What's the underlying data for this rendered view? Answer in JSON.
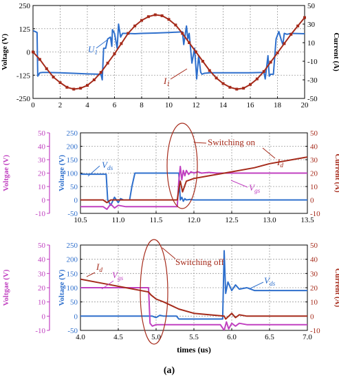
{
  "figure_label": "(a)",
  "colors": {
    "blue": "#2e6fcc",
    "red": "#a52a1a",
    "magenta": "#c040c0",
    "grid": "#9a9a9a"
  },
  "chart_data": [
    {
      "id": "top",
      "type": "line",
      "xlim": [
        0,
        20
      ],
      "x_ticks": [
        0,
        2,
        4,
        6,
        8,
        10,
        12,
        14,
        16,
        18,
        20
      ],
      "left_axis": {
        "label": "Voltage (V)",
        "lim": [
          -250,
          250
        ],
        "ticks": [
          -250,
          -125,
          0,
          125,
          250
        ]
      },
      "right_axis": {
        "label": "Current (A)",
        "lim": [
          -50,
          50
        ],
        "ticks": [
          -50,
          -30,
          -10,
          10,
          30,
          50
        ]
      },
      "series": [
        {
          "name": "U1",
          "label_main": "U",
          "label_sub": "1",
          "axis": "left",
          "color_key": "blue",
          "x": [
            0,
            0.15,
            0.3,
            0.35,
            0.5,
            0.7,
            1,
            2,
            3,
            4,
            5,
            5.1,
            5.2,
            5.35,
            5.5,
            5.7,
            5.8,
            5.85,
            6,
            6.2,
            6.3,
            6.45,
            6.6,
            6.9,
            7.5,
            8,
            9,
            10,
            11,
            11.1,
            11.3,
            11.4,
            11.5,
            11.7,
            11.9,
            12.05,
            12.2,
            12.35,
            12.45,
            12.6,
            13,
            14,
            15,
            16,
            17,
            17.1,
            17.3,
            17.4,
            17.5,
            17.7,
            17.9,
            18.1,
            18.3,
            18.4,
            18.5,
            18.7,
            19,
            20
          ],
          "y": [
            115,
            110,
            105,
            -130,
            -112,
            -110,
            -110,
            -112,
            -115,
            -118,
            -120,
            -150,
            20,
            20,
            70,
            80,
            30,
            120,
            100,
            20,
            150,
            80,
            100,
            100,
            98,
            100,
            102,
            105,
            108,
            40,
            140,
            70,
            100,
            -60,
            20,
            -145,
            -20,
            -110,
            -120,
            -115,
            -112,
            -112,
            -112,
            -112,
            -110,
            -145,
            -20,
            -130,
            -120,
            -120,
            70,
            110,
            60,
            40,
            100,
            95,
            100,
            98
          ]
        },
        {
          "name": "I1",
          "label_main": "I",
          "label_sub": "1",
          "axis": "right",
          "color_key": "red",
          "x": [
            0,
            0.5,
            1,
            1.5,
            2,
            2.5,
            3,
            3.5,
            4,
            4.5,
            5,
            5.5,
            6,
            6.5,
            7,
            7.5,
            8,
            8.5,
            9,
            9.5,
            10,
            10.5,
            11,
            11.5,
            12,
            12.5,
            13,
            13.5,
            14,
            14.5,
            15,
            15.5,
            16,
            16.5,
            17,
            17.5,
            18,
            18.5,
            19,
            19.5,
            20
          ],
          "y": [
            0,
            -8,
            -18,
            -27,
            -33,
            -38,
            -40,
            -39,
            -36,
            -30,
            -22,
            -12,
            -2,
            9,
            20,
            28,
            34,
            38,
            40,
            39,
            35,
            29,
            20,
            10,
            0,
            -10,
            -20,
            -28,
            -34,
            -38,
            -40,
            -39,
            -35,
            -29,
            -21,
            -11,
            -1,
            9,
            19,
            28,
            37
          ]
        }
      ],
      "annotations": []
    },
    {
      "id": "mid",
      "type": "line",
      "xlim": [
        10.5,
        13.5
      ],
      "x_ticks": [
        10.5,
        11.0,
        11.5,
        12.0,
        12.5,
        13.0,
        13.5
      ],
      "x_tick_labels": [
        "10.5",
        "11.0",
        "11.5",
        "12.0",
        "12.5",
        "13.0",
        "13.5"
      ],
      "left_axis": {
        "label": "Voltage (V)",
        "lim": [
          -50,
          250
        ],
        "ticks": [
          -50,
          0,
          50,
          100,
          150,
          200,
          250
        ]
      },
      "outer_left_axis": {
        "label": "Voltgae (V)",
        "lim": [
          -10,
          50
        ],
        "ticks": [
          -10,
          0,
          10,
          20,
          30,
          40,
          50
        ]
      },
      "right_axis": {
        "label": "Current (A)",
        "lim": [
          -10,
          50
        ],
        "ticks": [
          -10,
          0,
          10,
          20,
          30,
          40,
          50
        ]
      },
      "series": [
        {
          "name": "Vds",
          "label_main": "V",
          "label_sub": "ds",
          "axis": "left",
          "color_key": "blue",
          "x": [
            10.5,
            10.84,
            10.86,
            10.9,
            10.95,
            11.0,
            11.03,
            11.07,
            11.1,
            11.15,
            11.18,
            11.22,
            11.3,
            11.4,
            11.5,
            11.6,
            11.7,
            11.78,
            11.8,
            11.82,
            11.84,
            11.86,
            11.88,
            11.9,
            11.95,
            12.0,
            12.2,
            12.5,
            13.0,
            13.5
          ],
          "y": [
            96,
            96,
            0,
            -20,
            10,
            -10,
            5,
            0,
            0,
            0,
            50,
            100,
            100,
            100,
            100,
            100,
            100,
            100,
            100,
            0,
            10,
            -5,
            5,
            0,
            2,
            0,
            0,
            0,
            0,
            0
          ]
        },
        {
          "name": "Vgs",
          "label_main": "V",
          "label_sub": "gs",
          "axis": "outer_left",
          "color_key": "magenta",
          "x": [
            10.5,
            10.8,
            10.85,
            10.9,
            10.95,
            11.0,
            11.1,
            11.3,
            11.5,
            11.7,
            11.78,
            11.8,
            11.82,
            11.84,
            11.86,
            11.88,
            11.9,
            11.93,
            11.96,
            12.0,
            12.05,
            12.1,
            12.2,
            12.3,
            12.5,
            13.0,
            13.5
          ],
          "y": [
            -5,
            -5,
            -7,
            -3,
            -6,
            -4,
            -5,
            -5,
            -5,
            -5,
            -5,
            14,
            25,
            15,
            22,
            18,
            22,
            19,
            21,
            20,
            21,
            20,
            20.5,
            20,
            20,
            20,
            20
          ]
        },
        {
          "name": "Id",
          "label_main": "I",
          "label_sub": "d",
          "axis": "right",
          "color_key": "red",
          "x": [
            10.5,
            10.8,
            10.85,
            10.9,
            11.0,
            11.2,
            11.5,
            11.78,
            11.8,
            11.82,
            11.85,
            11.9,
            12.0,
            12.2,
            12.5,
            12.8,
            13.0,
            13.3,
            13.5
          ],
          "y": [
            0,
            0,
            -2,
            0,
            0,
            0,
            0,
            0,
            8,
            14,
            6,
            14,
            16,
            18,
            21,
            24,
            27,
            30,
            32
          ]
        }
      ],
      "annotations": [
        {
          "text": "Switching on"
        }
      ]
    },
    {
      "id": "bot",
      "type": "line",
      "xlim": [
        4.0,
        7.0
      ],
      "x_ticks": [
        4.0,
        4.5,
        5.0,
        5.5,
        6.0,
        6.5,
        7.0
      ],
      "x_tick_labels": [
        "4.0",
        "4.5",
        "5.0",
        "5.5",
        "6.0",
        "6.5",
        "7.0"
      ],
      "x_axis_label": "times (us)",
      "left_axis": {
        "label": "Voltage (V)",
        "lim": [
          -50,
          250
        ],
        "ticks": [
          -50,
          0,
          50,
          100,
          150,
          200,
          250
        ]
      },
      "outer_left_axis": {
        "label": "Voltgae (V)",
        "lim": [
          -10,
          50
        ],
        "ticks": [
          -10,
          0,
          10,
          20,
          30,
          40,
          50
        ]
      },
      "right_axis": {
        "label": "Current (A)",
        "lim": [
          -10,
          50
        ],
        "ticks": [
          -10,
          0,
          10,
          20,
          30,
          40,
          50
        ]
      },
      "series": [
        {
          "name": "Vds",
          "label_main": "V",
          "label_sub": "ds",
          "axis": "left",
          "color_key": "blue",
          "x": [
            4.0,
            4.9,
            4.92,
            4.95,
            5.0,
            5.05,
            5.1,
            5.2,
            5.27,
            5.3,
            5.35,
            5.5,
            5.8,
            5.88,
            5.9,
            5.92,
            5.95,
            6.0,
            6.05,
            6.1,
            6.2,
            6.3,
            6.5,
            7.0
          ],
          "y": [
            0,
            0,
            0,
            0,
            -5,
            3,
            0,
            0,
            0,
            -10,
            -10,
            -10,
            -10,
            -10,
            230,
            80,
            120,
            90,
            110,
            95,
            100,
            90,
            90,
            90
          ]
        },
        {
          "name": "Vgs",
          "label_main": "V",
          "label_sub": "gs",
          "axis": "outer_left",
          "color_key": "magenta",
          "x": [
            4.0,
            4.9,
            4.92,
            4.95,
            5.0,
            5.1,
            5.3,
            5.5,
            5.85,
            5.9,
            5.93,
            5.96,
            6.0,
            6.05,
            6.1,
            6.2,
            6.5,
            7.0
          ],
          "y": [
            20,
            20,
            -5,
            -7,
            -6,
            -6,
            -6,
            -6,
            -6,
            -10,
            -4,
            -9,
            -5,
            -7,
            -5,
            -6,
            -6,
            -6
          ]
        },
        {
          "name": "Id",
          "label_main": "I",
          "label_sub": "d",
          "axis": "right",
          "color_key": "red",
          "x": [
            4.0,
            4.3,
            4.6,
            4.9,
            4.93,
            5.0,
            5.1,
            5.3,
            5.5,
            5.7,
            5.9,
            5.92,
            6.0,
            6.05,
            6.1,
            6.2,
            6.5,
            7.0
          ],
          "y": [
            26,
            23,
            20,
            17,
            15,
            12,
            10,
            5,
            2,
            1,
            0,
            -2,
            2,
            -1,
            1,
            0,
            0,
            0
          ]
        }
      ],
      "annotations": [
        {
          "text": "Switching off"
        }
      ]
    }
  ]
}
